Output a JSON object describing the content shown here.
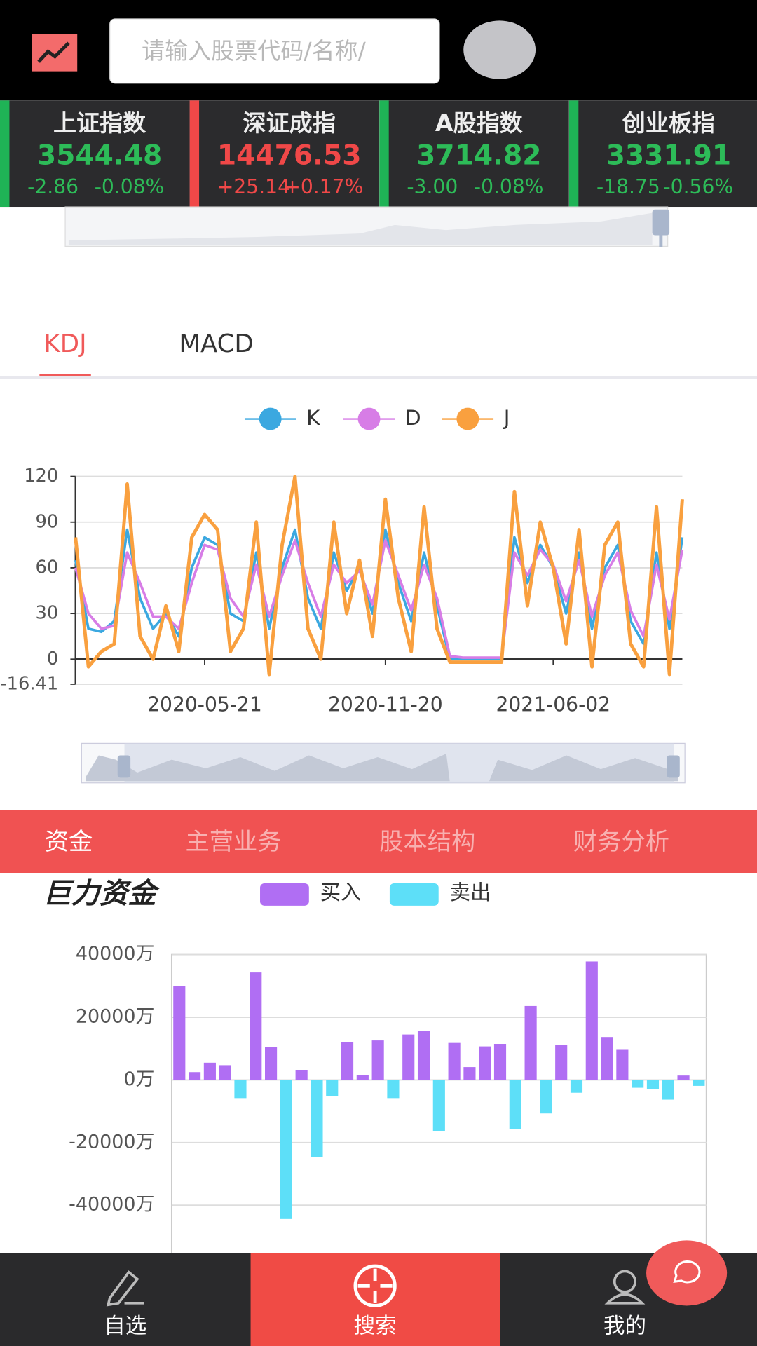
{
  "header": {
    "search_placeholder": "请输入股票代码/名称/"
  },
  "tickers": [
    {
      "name": "上证指数",
      "price": "3544.48",
      "change": "-2.86",
      "percent": "-0.08%",
      "color": "#2dbb58",
      "edge": "#1fb356"
    },
    {
      "name": "深证成指",
      "price": "14476.53",
      "change": "+25.14",
      "percent": "+0.17%",
      "color": "#f04848",
      "edge": "#f04848"
    },
    {
      "name": "A股指数",
      "price": "3714.82",
      "change": "-3.00",
      "percent": "-0.08%",
      "color": "#2dbb58",
      "edge": "#1fb356"
    },
    {
      "name": "创业板指",
      "price": "3331.91",
      "change": "-18.75",
      "percent": "-0.56%",
      "color": "#2dbb58",
      "edge": "#1fb356"
    }
  ],
  "chart_tabs": [
    "KDJ",
    "MACD"
  ],
  "chart_data": [
    {
      "type": "line",
      "categories": [
        null,
        null,
        null,
        null,
        null,
        null,
        null,
        null,
        null,
        null,
        "2020-05-21",
        null,
        null,
        null,
        null,
        null,
        null,
        null,
        null,
        null,
        null,
        null,
        null,
        null,
        "2020-11-20",
        null,
        null,
        null,
        null,
        null,
        null,
        null,
        null,
        null,
        null,
        null,
        null,
        "2021-06-02",
        null,
        null,
        null,
        null,
        null,
        null,
        null,
        null,
        null,
        null
      ],
      "series": [
        {
          "name": "K",
          "color": "#3ba8e0",
          "values": [
            65,
            20,
            18,
            25,
            85,
            40,
            20,
            30,
            15,
            60,
            80,
            75,
            30,
            25,
            70,
            20,
            60,
            85,
            40,
            20,
            70,
            45,
            60,
            30,
            85,
            50,
            25,
            70,
            35,
            0,
            0,
            0,
            0,
            0,
            80,
            50,
            75,
            60,
            30,
            70,
            20,
            60,
            75,
            25,
            10,
            70,
            20,
            80
          ]
        },
        {
          "name": "D",
          "color": "#d77de6",
          "values": [
            60,
            30,
            20,
            22,
            70,
            50,
            28,
            28,
            20,
            50,
            75,
            72,
            40,
            28,
            62,
            28,
            55,
            78,
            50,
            28,
            62,
            50,
            58,
            36,
            78,
            55,
            32,
            62,
            40,
            2,
            1,
            1,
            1,
            1,
            70,
            55,
            72,
            62,
            38,
            65,
            28,
            55,
            70,
            32,
            15,
            62,
            26,
            72
          ]
        },
        {
          "name": "J",
          "color": "#f9a03f",
          "values": [
            80,
            -5,
            5,
            10,
            115,
            15,
            0,
            35,
            5,
            80,
            95,
            85,
            5,
            20,
            90,
            -10,
            75,
            120,
            20,
            0,
            90,
            30,
            65,
            15,
            105,
            40,
            5,
            100,
            20,
            -2,
            -2,
            -2,
            -2,
            -2,
            110,
            35,
            90,
            60,
            10,
            85,
            -5,
            75,
            90,
            10,
            -5,
            100,
            -10,
            105
          ]
        }
      ],
      "ylim": [
        -16.41,
        120
      ],
      "yticks": [
        -16.41,
        0,
        30,
        60,
        90,
        120
      ],
      "grid": true
    },
    {
      "type": "bar",
      "title": "巨力资金",
      "series": [
        {
          "name": "买入",
          "color": "#b06ef3",
          "values": [
            30000,
            2500,
            5500,
            4700,
            null,
            34300,
            10400,
            null,
            3000,
            null,
            null,
            12100,
            1600,
            12600,
            null,
            14500,
            15600,
            null,
            11800,
            4100,
            10700,
            11500,
            null,
            23600,
            null,
            11200,
            null,
            37800,
            13700,
            9600,
            null,
            null,
            null,
            1400,
            null
          ]
        },
        {
          "name": "卖出",
          "color": "#5ddff8",
          "values": [
            null,
            null,
            null,
            null,
            -5800,
            null,
            null,
            -44400,
            null,
            -24700,
            -5200,
            null,
            null,
            null,
            -5800,
            null,
            null,
            -16400,
            null,
            null,
            null,
            null,
            -15600,
            null,
            -10700,
            null,
            -4100,
            null,
            null,
            null,
            -2500,
            -3000,
            -6300,
            null,
            -1900
          ]
        }
      ],
      "ylim": [
        -60000,
        40000
      ],
      "yticks": [
        {
          "value": -40000,
          "label": "-40000万"
        },
        {
          "value": -20000,
          "label": "-20000万"
        },
        {
          "value": 0,
          "label": "0万"
        },
        {
          "value": 20000,
          "label": "20000万"
        },
        {
          "value": 40000,
          "label": "40000万"
        }
      ],
      "grid": true
    }
  ],
  "info_tabs": [
    "资金",
    "主营业务",
    "股本结构",
    "财务分析"
  ],
  "nav": [
    "自选",
    "搜索",
    "我的"
  ]
}
